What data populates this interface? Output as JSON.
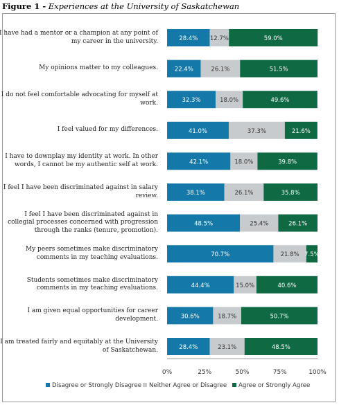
{
  "figure": {
    "label": "Figure 1 -",
    "title": "Experiences at the University of Saskatchewan"
  },
  "colors": {
    "disagree": "#1479a8",
    "neutral": "#c8cbce",
    "agree": "#0f6a44"
  },
  "chart_data": {
    "type": "bar",
    "orientation": "horizontal",
    "stacked": true,
    "unit": "%",
    "xlim": [
      0,
      100
    ],
    "x_ticks": [
      "0%",
      "25%",
      "50%",
      "75%",
      "100%"
    ],
    "legend_position": "bottom",
    "categories": [
      "I have had a mentor or a champion at any point of my career in the university.",
      "My opinions matter to my colleagues.",
      "I do not feel comfortable advocating for myself at work.",
      "I feel valued for my differences.",
      "I have to downplay my identity at work. In other words, I cannot be my authentic self at work.",
      "I feel I have been discriminated against in salary review.",
      "I feel I have been discriminated against in collegial processes concerned with progression through the ranks (tenure, promotion).",
      "My peers sometimes make discriminatory comments in my teaching evaluations.",
      "Students sometimes make discriminatory comments in my teaching evaluations.",
      "I am given equal opportunities for career development.",
      "I am treated fairly and equitably at the University of Saskatchewan."
    ],
    "series": [
      {
        "name": "Disagree or Strongly Disagree",
        "values": [
          28.4,
          22.4,
          32.3,
          41.0,
          42.1,
          38.1,
          48.5,
          70.7,
          44.4,
          30.6,
          28.4
        ],
        "labels": [
          "28.4%",
          "22.4%",
          "32.3%",
          "41.0%",
          "42.1%",
          "38.1%",
          "48.5%",
          "70.7%",
          "44.4%",
          "30.6%",
          "28.4%"
        ]
      },
      {
        "name": "Neither Agree or Disagree",
        "values": [
          12.7,
          26.1,
          18.0,
          37.3,
          18.0,
          26.1,
          25.4,
          21.8,
          15.0,
          18.7,
          23.1
        ],
        "labels": [
          "12.7%",
          "26.1%",
          "18.0%",
          "37.3%",
          "18.0%",
          "26.1%",
          "25.4%",
          "21.8%",
          "15.0%",
          "18.7%",
          "23.1%"
        ]
      },
      {
        "name": "Agree or Strongly Agree",
        "values": [
          59.0,
          51.5,
          49.6,
          21.6,
          39.8,
          35.8,
          26.1,
          7.5,
          40.6,
          50.7,
          48.5
        ],
        "labels": [
          "59.0%",
          "51.5%",
          "49.6%",
          "21.6%",
          "39.8%",
          "35.8%",
          "26.1%",
          "7.5%",
          "40.6%",
          "50.7%",
          "48.5%"
        ]
      }
    ]
  }
}
